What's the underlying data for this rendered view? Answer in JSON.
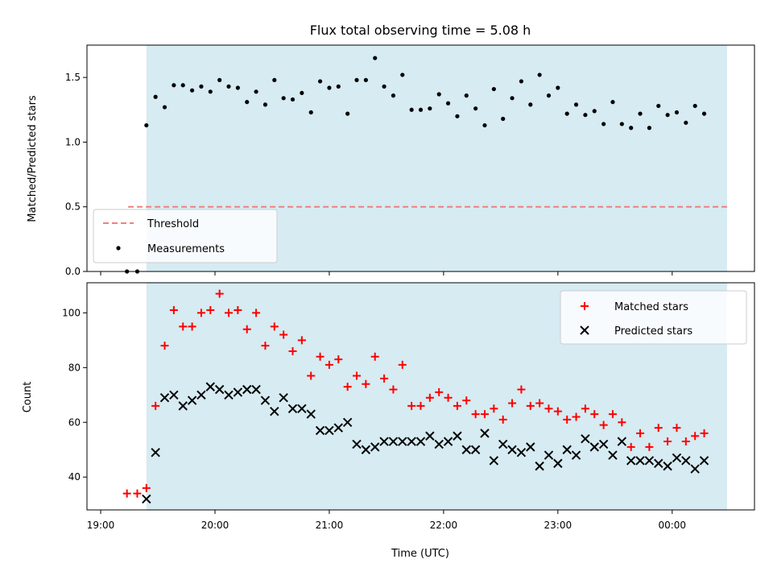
{
  "chart_data": {
    "title": "Flux total observing time = 5.08 h",
    "xlabel": "Time (UTC)",
    "xlim": [
      -0.12,
      5.72
    ],
    "x_ticks": [
      {
        "value": 0,
        "label": "19:00"
      },
      {
        "value": 1,
        "label": "20:00"
      },
      {
        "value": 2,
        "label": "21:00"
      },
      {
        "value": 3,
        "label": "22:00"
      },
      {
        "value": 4,
        "label": "23:00"
      },
      {
        "value": 5,
        "label": "00:00"
      }
    ],
    "observing_window": {
      "start": 0.4,
      "end": 5.48,
      "color": "#add8e6"
    },
    "panels": [
      {
        "type": "scatter",
        "ylabel": "Matched/Predicted stars",
        "ylim": [
          0,
          1.75
        ],
        "y_ticks": [
          0.0,
          0.5,
          1.0,
          1.5
        ],
        "y_tick_labels": [
          "0.0",
          "0.5",
          "1.0",
          "1.5"
        ],
        "legend_position": "lower-left",
        "threshold": {
          "name": "Threshold",
          "value": 0.5,
          "x_start": 0.24,
          "x_end": 5.48,
          "color": "#f08080"
        },
        "series": [
          {
            "name": "Measurements",
            "color": "#000000",
            "marker": "dot",
            "points": [
              [
                0.23,
                0.0
              ],
              [
                0.32,
                0.0
              ],
              [
                0.4,
                1.13
              ],
              [
                0.48,
                1.35
              ],
              [
                0.56,
                1.27
              ],
              [
                0.64,
                1.44
              ],
              [
                0.72,
                1.44
              ],
              [
                0.8,
                1.4
              ],
              [
                0.88,
                1.43
              ],
              [
                0.96,
                1.39
              ],
              [
                1.04,
                1.48
              ],
              [
                1.12,
                1.43
              ],
              [
                1.2,
                1.42
              ],
              [
                1.28,
                1.31
              ],
              [
                1.36,
                1.39
              ],
              [
                1.44,
                1.29
              ],
              [
                1.52,
                1.48
              ],
              [
                1.6,
                1.34
              ],
              [
                1.68,
                1.33
              ],
              [
                1.76,
                1.38
              ],
              [
                1.84,
                1.23
              ],
              [
                1.92,
                1.47
              ],
              [
                2.0,
                1.42
              ],
              [
                2.08,
                1.43
              ],
              [
                2.16,
                1.22
              ],
              [
                2.24,
                1.48
              ],
              [
                2.32,
                1.48
              ],
              [
                2.4,
                1.65
              ],
              [
                2.48,
                1.43
              ],
              [
                2.56,
                1.36
              ],
              [
                2.64,
                1.52
              ],
              [
                2.72,
                1.25
              ],
              [
                2.8,
                1.25
              ],
              [
                2.88,
                1.26
              ],
              [
                2.96,
                1.37
              ],
              [
                3.04,
                1.3
              ],
              [
                3.12,
                1.2
              ],
              [
                3.2,
                1.36
              ],
              [
                3.28,
                1.26
              ],
              [
                3.36,
                1.13
              ],
              [
                3.44,
                1.41
              ],
              [
                3.52,
                1.18
              ],
              [
                3.6,
                1.34
              ],
              [
                3.68,
                1.47
              ],
              [
                3.76,
                1.29
              ],
              [
                3.84,
                1.52
              ],
              [
                3.92,
                1.36
              ],
              [
                4.0,
                1.42
              ],
              [
                4.08,
                1.22
              ],
              [
                4.16,
                1.29
              ],
              [
                4.24,
                1.21
              ],
              [
                4.32,
                1.24
              ],
              [
                4.4,
                1.14
              ],
              [
                4.48,
                1.31
              ],
              [
                4.56,
                1.14
              ],
              [
                4.64,
                1.11
              ],
              [
                4.72,
                1.22
              ],
              [
                4.8,
                1.11
              ],
              [
                4.88,
                1.28
              ],
              [
                4.96,
                1.21
              ],
              [
                5.04,
                1.23
              ],
              [
                5.12,
                1.15
              ],
              [
                5.2,
                1.28
              ],
              [
                5.28,
                1.22
              ]
            ]
          }
        ]
      },
      {
        "type": "scatter",
        "ylabel": "Count",
        "ylim": [
          28,
          111
        ],
        "y_ticks": [
          40,
          60,
          80,
          100
        ],
        "y_tick_labels": [
          "40",
          "60",
          "80",
          "100"
        ],
        "legend_position": "upper-right",
        "series": [
          {
            "name": "Matched stars",
            "color": "#ff0000",
            "marker": "plus",
            "points": [
              [
                0.23,
                34
              ],
              [
                0.32,
                34
              ],
              [
                0.4,
                36
              ],
              [
                0.48,
                66
              ],
              [
                0.56,
                88
              ],
              [
                0.64,
                101
              ],
              [
                0.72,
                95
              ],
              [
                0.8,
                95
              ],
              [
                0.88,
                100
              ],
              [
                0.96,
                101
              ],
              [
                1.04,
                107
              ],
              [
                1.12,
                100
              ],
              [
                1.2,
                101
              ],
              [
                1.28,
                94
              ],
              [
                1.36,
                100
              ],
              [
                1.44,
                88
              ],
              [
                1.52,
                95
              ],
              [
                1.6,
                92
              ],
              [
                1.68,
                86
              ],
              [
                1.76,
                90
              ],
              [
                1.84,
                77
              ],
              [
                1.92,
                84
              ],
              [
                2.0,
                81
              ],
              [
                2.08,
                83
              ],
              [
                2.16,
                73
              ],
              [
                2.24,
                77
              ],
              [
                2.32,
                74
              ],
              [
                2.4,
                84
              ],
              [
                2.48,
                76
              ],
              [
                2.56,
                72
              ],
              [
                2.64,
                81
              ],
              [
                2.72,
                66
              ],
              [
                2.8,
                66
              ],
              [
                2.88,
                69
              ],
              [
                2.96,
                71
              ],
              [
                3.04,
                69
              ],
              [
                3.12,
                66
              ],
              [
                3.2,
                68
              ],
              [
                3.28,
                63
              ],
              [
                3.36,
                63
              ],
              [
                3.44,
                65
              ],
              [
                3.52,
                61
              ],
              [
                3.6,
                67
              ],
              [
                3.68,
                72
              ],
              [
                3.76,
                66
              ],
              [
                3.84,
                67
              ],
              [
                3.92,
                65
              ],
              [
                4.0,
                64
              ],
              [
                4.08,
                61
              ],
              [
                4.16,
                62
              ],
              [
                4.24,
                65
              ],
              [
                4.32,
                63
              ],
              [
                4.4,
                59
              ],
              [
                4.48,
                63
              ],
              [
                4.56,
                60
              ],
              [
                4.64,
                51
              ],
              [
                4.72,
                56
              ],
              [
                4.8,
                51
              ],
              [
                4.88,
                58
              ],
              [
                4.96,
                53
              ],
              [
                5.04,
                58
              ],
              [
                5.12,
                53
              ],
              [
                5.2,
                55
              ],
              [
                5.28,
                56
              ]
            ]
          },
          {
            "name": "Predicted stars",
            "color": "#000000",
            "marker": "x",
            "points": [
              [
                0.4,
                32
              ],
              [
                0.48,
                49
              ],
              [
                0.56,
                69
              ],
              [
                0.64,
                70
              ],
              [
                0.72,
                66
              ],
              [
                0.8,
                68
              ],
              [
                0.88,
                70
              ],
              [
                0.96,
                73
              ],
              [
                1.04,
                72
              ],
              [
                1.12,
                70
              ],
              [
                1.2,
                71
              ],
              [
                1.28,
                72
              ],
              [
                1.36,
                72
              ],
              [
                1.44,
                68
              ],
              [
                1.52,
                64
              ],
              [
                1.6,
                69
              ],
              [
                1.68,
                65
              ],
              [
                1.76,
                65
              ],
              [
                1.84,
                63
              ],
              [
                1.92,
                57
              ],
              [
                2.0,
                57
              ],
              [
                2.08,
                58
              ],
              [
                2.16,
                60
              ],
              [
                2.24,
                52
              ],
              [
                2.32,
                50
              ],
              [
                2.4,
                51
              ],
              [
                2.48,
                53
              ],
              [
                2.56,
                53
              ],
              [
                2.64,
                53
              ],
              [
                2.72,
                53
              ],
              [
                2.8,
                53
              ],
              [
                2.88,
                55
              ],
              [
                2.96,
                52
              ],
              [
                3.04,
                53
              ],
              [
                3.12,
                55
              ],
              [
                3.2,
                50
              ],
              [
                3.28,
                50
              ],
              [
                3.36,
                56
              ],
              [
                3.44,
                46
              ],
              [
                3.52,
                52
              ],
              [
                3.6,
                50
              ],
              [
                3.68,
                49
              ],
              [
                3.76,
                51
              ],
              [
                3.84,
                44
              ],
              [
                3.92,
                48
              ],
              [
                4.0,
                45
              ],
              [
                4.08,
                50
              ],
              [
                4.16,
                48
              ],
              [
                4.24,
                54
              ],
              [
                4.32,
                51
              ],
              [
                4.4,
                52
              ],
              [
                4.48,
                48
              ],
              [
                4.56,
                53
              ],
              [
                4.64,
                46
              ],
              [
                4.72,
                46
              ],
              [
                4.8,
                46
              ],
              [
                4.88,
                45
              ],
              [
                4.96,
                44
              ],
              [
                5.04,
                47
              ],
              [
                5.12,
                46
              ],
              [
                5.2,
                43
              ],
              [
                5.28,
                46
              ]
            ]
          }
        ]
      }
    ]
  }
}
